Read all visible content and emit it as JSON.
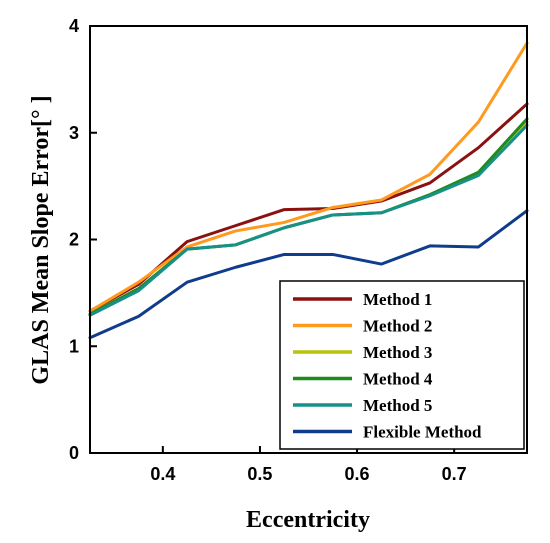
{
  "chart_data": {
    "type": "line",
    "xlabel": "Eccentricity",
    "ylabel": "GLAS Mean Slope Error[° ]",
    "xlim": [
      0.325,
      0.775
    ],
    "ylim": [
      0,
      4
    ],
    "xticks": [
      "0.4",
      "0.5",
      "0.6",
      "0.7"
    ],
    "xtick_values": [
      0.4,
      0.5,
      0.6,
      0.7
    ],
    "yticks": [
      "0",
      "1",
      "2",
      "3",
      "4"
    ],
    "ytick_values": [
      0,
      1,
      2,
      3,
      4
    ],
    "grid": false,
    "legend_position": "bottom-right",
    "x": [
      0.325,
      0.375,
      0.425,
      0.475,
      0.525,
      0.575,
      0.625,
      0.675,
      0.725,
      0.775
    ],
    "series": [
      {
        "name": "Method 1",
        "color": "#8b1010",
        "values": [
          1.33,
          1.58,
          1.98,
          2.13,
          2.28,
          2.29,
          2.36,
          2.53,
          2.86,
          3.27
        ]
      },
      {
        "name": "Method 2",
        "color": "#ff9a1f",
        "values": [
          1.33,
          1.6,
          1.93,
          2.08,
          2.16,
          2.3,
          2.37,
          2.61,
          3.1,
          3.84
        ]
      },
      {
        "name": "Method 3",
        "color": "#b8c40a",
        "values": [
          1.3,
          1.54,
          1.91,
          1.95,
          2.11,
          2.23,
          2.25,
          2.42,
          2.62,
          3.1
        ]
      },
      {
        "name": "Method 4",
        "color": "#1f8a1f",
        "values": [
          1.3,
          1.54,
          1.91,
          1.95,
          2.11,
          2.23,
          2.25,
          2.42,
          2.63,
          3.13
        ]
      },
      {
        "name": "Method 5",
        "color": "#17908a",
        "values": [
          1.29,
          1.52,
          1.91,
          1.95,
          2.11,
          2.23,
          2.25,
          2.41,
          2.6,
          3.07
        ]
      },
      {
        "name": "Flexible Method",
        "color": "#0f3c8c",
        "values": [
          1.08,
          1.28,
          1.6,
          1.74,
          1.86,
          1.86,
          1.77,
          1.94,
          1.93,
          2.27
        ]
      }
    ]
  }
}
